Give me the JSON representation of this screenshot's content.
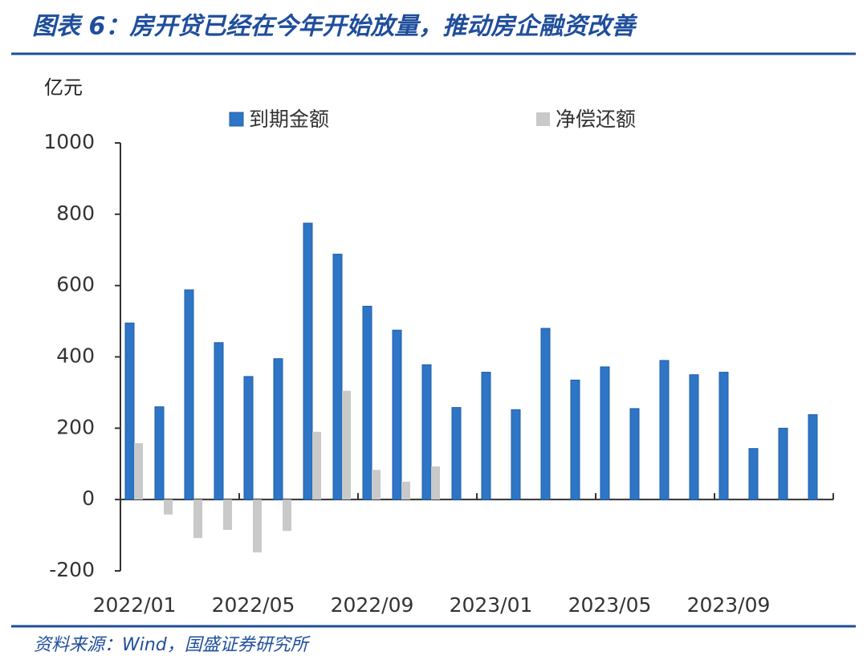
{
  "chart_data": {
    "type": "bar",
    "title": "图表 6：房开贷已经在今年开始放量，推动房企融资改善",
    "y_unit": "亿元",
    "source": "资料来源：Wind，国盛证券研究所",
    "categories": [
      "2022/01",
      null,
      null,
      null,
      "2022/05",
      null,
      null,
      null,
      "2022/09",
      null,
      null,
      null,
      "2023/01",
      null,
      null,
      null,
      "2023/05",
      null,
      null,
      null,
      "2023/09",
      null,
      null,
      null
    ],
    "series": [
      {
        "name": "到期金额",
        "color": "#2e75c6",
        "values": [
          495,
          260,
          588,
          440,
          345,
          395,
          775,
          688,
          542,
          475,
          378,
          258,
          357,
          252,
          480,
          335,
          372,
          255,
          390,
          350,
          357,
          143,
          200,
          238
        ]
      },
      {
        "name": "净偿还额",
        "color": "#c9c9c9",
        "values": [
          158,
          -42,
          -108,
          -85,
          -148,
          -88,
          190,
          305,
          83,
          50,
          93,
          null,
          null,
          null,
          null,
          null,
          null,
          null,
          null,
          null,
          null,
          null,
          null,
          null
        ]
      }
    ],
    "ylim": [
      -200,
      1000
    ],
    "yticks": [
      -200,
      0,
      200,
      400,
      600,
      800,
      1000
    ]
  }
}
